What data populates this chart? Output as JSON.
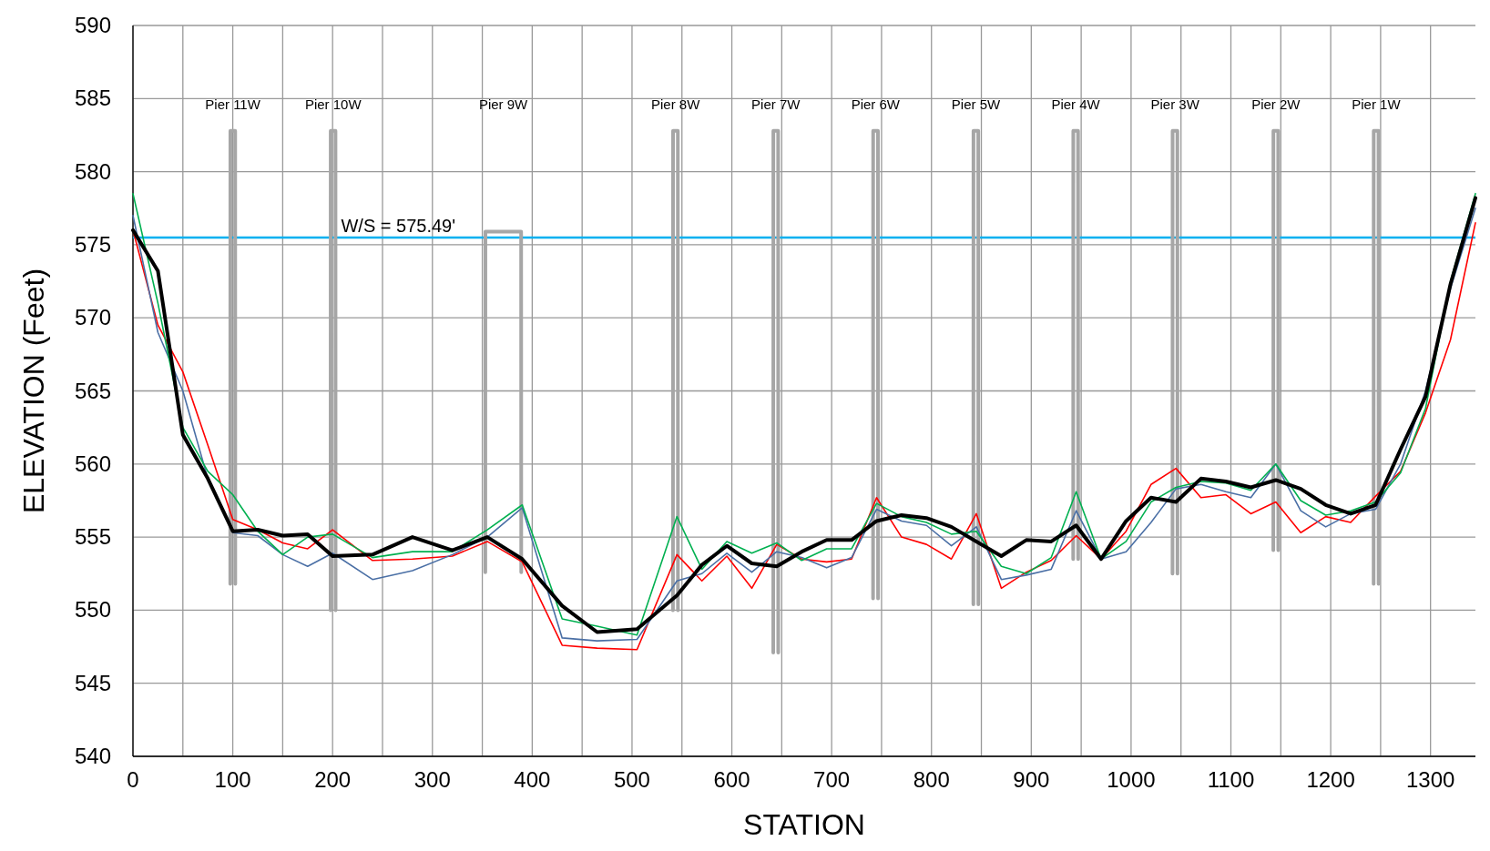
{
  "chart_data": {
    "type": "line",
    "xlabel": "STATION",
    "ylabel": "ELEVATION (Feet)",
    "xlim": [
      0,
      1345
    ],
    "ylim": [
      540,
      590
    ],
    "xticks": [
      0,
      {
        "value": 50,
        "label": null
      },
      100,
      {
        "value": 150,
        "label": null
      },
      200,
      {
        "value": 250,
        "label": null
      },
      300,
      {
        "value": 350,
        "label": null
      },
      400,
      {
        "value": 450,
        "label": null
      },
      500,
      {
        "value": 550,
        "label": null
      },
      600,
      {
        "value": 650,
        "label": null
      },
      700,
      {
        "value": 750,
        "label": null
      },
      800,
      {
        "value": 850,
        "label": null
      },
      900,
      {
        "value": 950,
        "label": null
      },
      1000,
      {
        "value": 1050,
        "label": null
      },
      1100,
      {
        "value": 1150,
        "label": null
      },
      1200,
      {
        "value": 1250,
        "label": null
      },
      1300
    ],
    "yticks": [
      540,
      545,
      550,
      555,
      560,
      565,
      570,
      575,
      580,
      585,
      590
    ],
    "grid": true,
    "marker": "none",
    "line_style": "solid",
    "x": [
      0,
      25,
      50,
      75,
      100,
      125,
      150,
      175,
      200,
      240,
      280,
      320,
      355,
      390,
      430,
      465,
      505,
      545,
      570,
      595,
      620,
      645,
      670,
      695,
      720,
      745,
      770,
      795,
      820,
      845,
      870,
      895,
      920,
      945,
      970,
      995,
      1020,
      1045,
      1070,
      1095,
      1120,
      1145,
      1170,
      1195,
      1220,
      1245,
      1270,
      1295,
      1320,
      1345
    ],
    "series": [
      {
        "color": "#a6a6a6",
        "x": [
          97.5,
          97.6,
          102.4,
          102.5
        ],
        "values": [
          551.8,
          582.8,
          582.8,
          551.8
        ]
      },
      {
        "color": "#a6a6a6",
        "x": [
          198,
          198.1,
          202.9,
          203
        ],
        "values": [
          550,
          582.8,
          582.8,
          550
        ]
      },
      {
        "color": "#a6a6a6",
        "x": [
          353,
          353.1,
          388.9,
          389
        ],
        "values": [
          552.6,
          575.9,
          575.9,
          552.6
        ]
      },
      {
        "color": "#a6a6a6",
        "x": [
          541,
          541.1,
          545.9,
          546
        ],
        "values": [
          550,
          582.8,
          582.8,
          550
        ]
      },
      {
        "color": "#a6a6a6",
        "x": [
          641.5,
          641.6,
          646.4,
          646.5
        ],
        "values": [
          547.1,
          582.8,
          582.8,
          547.1
        ]
      },
      {
        "color": "#a6a6a6",
        "x": [
          741.5,
          741.6,
          746.4,
          746.5
        ],
        "values": [
          550.8,
          582.8,
          582.8,
          550.8
        ]
      },
      {
        "color": "#a6a6a6",
        "x": [
          842,
          842.1,
          846.9,
          847
        ],
        "values": [
          550.4,
          582.8,
          582.8,
          550.4
        ]
      },
      {
        "color": "#a6a6a6",
        "x": [
          942,
          942.1,
          946.9,
          947
        ],
        "values": [
          553.5,
          582.8,
          582.8,
          553.5
        ]
      },
      {
        "color": "#a6a6a6",
        "x": [
          1041.5,
          1041.6,
          1046.4,
          1046.5
        ],
        "values": [
          552.5,
          582.8,
          582.8,
          552.5
        ]
      },
      {
        "color": "#a6a6a6",
        "x": [
          1142.5,
          1142.6,
          1147.4,
          1147.5
        ],
        "values": [
          554.1,
          582.8,
          582.8,
          554.1
        ]
      },
      {
        "color": "#a6a6a6",
        "x": [
          1243,
          1243.1,
          1247.9,
          1248
        ],
        "values": [
          551.8,
          582.8,
          582.8,
          551.8
        ]
      },
      {
        "color": "#ff0000",
        "values": [
          576,
          569.5,
          566.3,
          561.3,
          556.2,
          555.5,
          554.6,
          554.2,
          555.5,
          553.4,
          553.5,
          553.7,
          554.7,
          553.3,
          547.6,
          547.4,
          547.3,
          553.8,
          552,
          553.7,
          551.5,
          554.5,
          553.5,
          553.3,
          553.5,
          557.7,
          555,
          554.5,
          553.5,
          556.6,
          551.5,
          552.6,
          553.4,
          555.1,
          553.5,
          555.4,
          558.6,
          559.7,
          557.7,
          557.9,
          556.6,
          557.4,
          555.3,
          556.4,
          556,
          557.8,
          559.5,
          563.5,
          568.5,
          576.5
        ]
      },
      {
        "color": "#4a6fa5",
        "values": [
          577,
          569,
          565,
          559,
          555.3,
          555.1,
          553.8,
          553,
          553.9,
          552.1,
          552.7,
          553.8,
          555,
          557,
          548.1,
          547.9,
          548,
          552,
          552.5,
          553.9,
          552.6,
          554,
          553.6,
          552.9,
          553.6,
          556.9,
          556.1,
          555.8,
          554.4,
          555.7,
          552.1,
          552.4,
          552.8,
          556.8,
          553.5,
          554,
          556,
          558.3,
          558.6,
          558.1,
          557.7,
          560,
          556.8,
          555.7,
          556.6,
          556.9,
          560,
          565,
          572,
          577.5
        ]
      },
      {
        "color": "#00b050",
        "values": [
          578.5,
          571,
          562.5,
          559.5,
          557.9,
          555.4,
          553.8,
          555,
          555.2,
          553.6,
          554,
          554,
          555.5,
          557.2,
          549.4,
          548.9,
          548.3,
          556.4,
          552.8,
          554.7,
          553.9,
          554.6,
          553.4,
          554.2,
          554.2,
          557.3,
          556.4,
          556,
          555.2,
          555.4,
          553,
          552.5,
          553.6,
          558.1,
          553.5,
          554.7,
          557.4,
          558.4,
          558.8,
          558.7,
          558.2,
          560,
          557.5,
          556.5,
          556.8,
          557.4,
          559.4,
          563.8,
          572.5,
          578.5
        ]
      },
      {
        "color": "#000000",
        "values": [
          576,
          573.2,
          562,
          559,
          555.4,
          555.5,
          555.1,
          555.2,
          553.7,
          553.8,
          555,
          554.1,
          555,
          553.5,
          550.3,
          548.5,
          548.7,
          551,
          553.1,
          554.4,
          553.2,
          553,
          554,
          554.8,
          554.8,
          556.1,
          556.5,
          556.3,
          555.7,
          554.7,
          553.7,
          554.8,
          554.7,
          555.8,
          553.5,
          556.1,
          557.7,
          557.4,
          559,
          558.8,
          558.4,
          558.9,
          558.3,
          557.2,
          556.6,
          557.2,
          561,
          564.6,
          572.3,
          578.2
        ]
      }
    ],
    "ref_lines": [
      {
        "axis": "y",
        "value": 575.49,
        "label": "W/S = 575.49'",
        "color": "#00b0f0"
      }
    ],
    "annotations": [
      "Pier 11W",
      "Pier 10W",
      "Pier 9W",
      "Pier 8W",
      "Pier 7W",
      "Pier 6W",
      "Pier 5W",
      "Pier 4W",
      "Pier 3W",
      "Pier 2W",
      "Pier 1W"
    ]
  }
}
